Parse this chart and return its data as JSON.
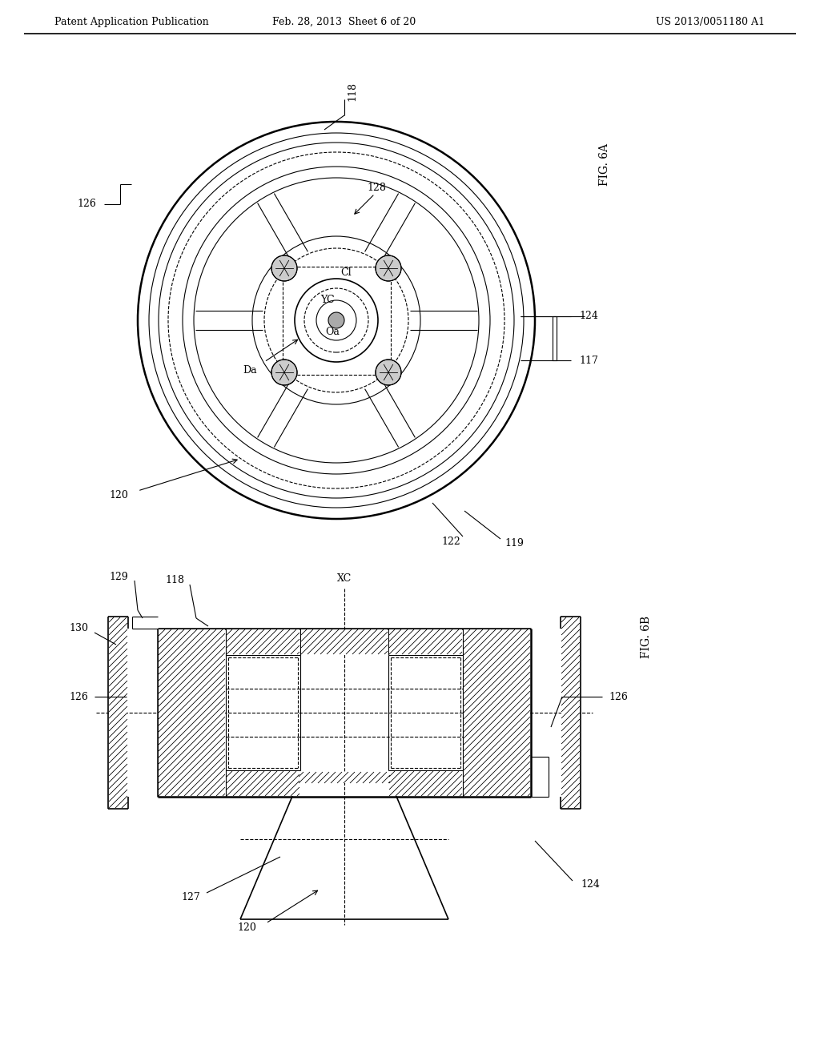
{
  "bg_color": "#ffffff",
  "line_color": "#000000",
  "header": {
    "left": "Patent Application Publication",
    "center": "Feb. 28, 2013  Sheet 6 of 20",
    "right": "US 2013/0051180 A1"
  }
}
